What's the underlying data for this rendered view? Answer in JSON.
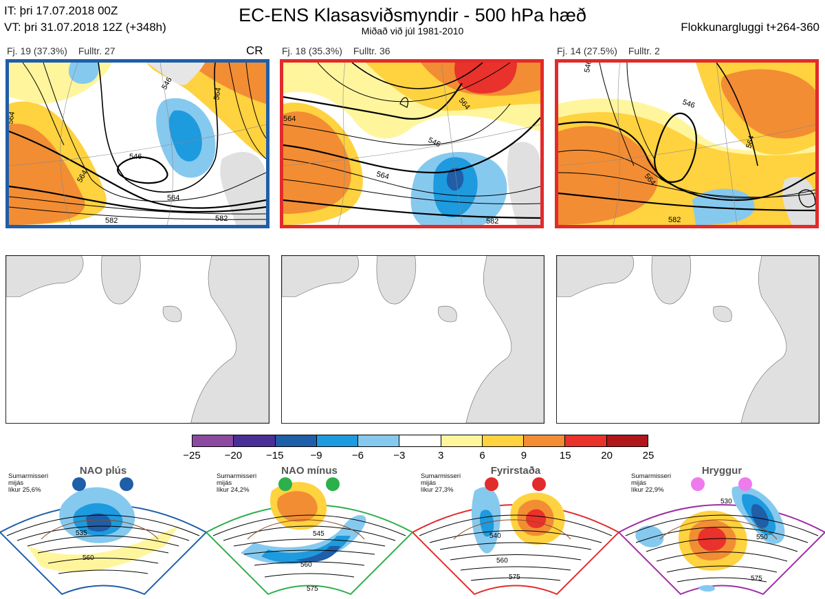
{
  "header": {
    "it_label": "IT: þri 17.07.2018 00Z",
    "vt_label": "VT: þri 31.07.2018 12Z  (+348h)",
    "title": "EC-ENS Klasasviðsmyndir - 500 hPa hæð",
    "subtitle": "Miðað við júl 1981-2010",
    "window_label": "Flokkunargluggi t+264-360"
  },
  "panels": [
    {
      "fj": "Fj. 19 (37.3%)",
      "fulltr": "Fulltr. 27",
      "tag": "CR",
      "border_color": "#1f5ea8",
      "contour_labels": [
        "546",
        "546",
        "564",
        "564",
        "564",
        "582",
        "582",
        "564"
      ]
    },
    {
      "fj": "Fj. 18 (35.3%)",
      "fulltr": "Fulltr. 36",
      "tag": "",
      "border_color": "#e22b2b",
      "contour_labels": [
        "546",
        "564",
        "564",
        "564",
        "582"
      ]
    },
    {
      "fj": "Fj. 14 (27.5%)",
      "fulltr": "Fulltr. 2",
      "tag": "",
      "border_color": "#e22b2b",
      "contour_labels": [
        "546",
        "564",
        "564",
        "582",
        "546"
      ]
    }
  ],
  "colorbar": {
    "ticks": [
      "−25",
      "−20",
      "−15",
      "−9",
      "−6",
      "−3",
      "3",
      "6",
      "9",
      "15",
      "20",
      "25"
    ],
    "colors": [
      "#8b4aa0",
      "#4a2f96",
      "#1f5ea8",
      "#1e9ade",
      "#86c9ef",
      "#ffffff",
      "#fff59d",
      "#ffd23f",
      "#f28d34",
      "#e8322b",
      "#b0161a"
    ]
  },
  "regimes": [
    {
      "name": "NAO plús",
      "note_line1": "Sumarmisseri",
      "note_line2": "mijás",
      "note_line3": "líkur 25,6%",
      "color": "#1f5ea8",
      "labels": [
        "535",
        "560"
      ]
    },
    {
      "name": "NAO mínus",
      "note_line1": "Sumarmisseri",
      "note_line2": "mijás",
      "note_line3": "líkur 24,2%",
      "color": "#2bb04b",
      "labels": [
        "545",
        "560",
        "575"
      ]
    },
    {
      "name": "Fyrirstaða",
      "note_line1": "Sumarmisseri",
      "note_line2": "mijás",
      "note_line3": "líkur 27,3%",
      "color": "#e22b2b",
      "labels": [
        "540",
        "560",
        "575"
      ]
    },
    {
      "name": "Hryggur",
      "note_line1": "Sumarmisseri",
      "note_line2": "mijás",
      "note_line3": "líkur 22,9%",
      "color": "#9b2fa4",
      "labels": [
        "530",
        "550",
        "575"
      ]
    }
  ]
}
